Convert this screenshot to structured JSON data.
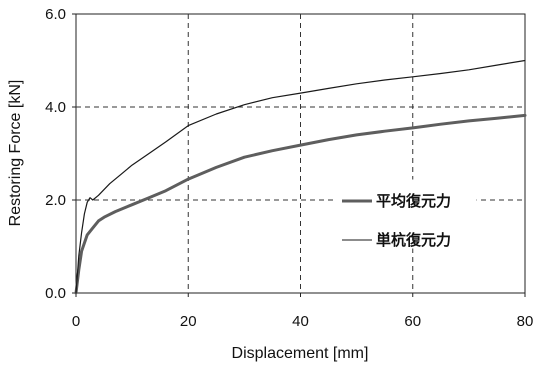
{
  "chart_data": {
    "type": "line",
    "title": "",
    "xlabel": "Displacement [mm]",
    "ylabel": "Restoring Force [kN]",
    "xlim": [
      0,
      80
    ],
    "ylim": [
      0,
      6
    ],
    "x_ticks": [
      0,
      20,
      40,
      60,
      80
    ],
    "x_tick_labels": [
      "0",
      "20",
      "40",
      "60",
      "80"
    ],
    "y_ticks": [
      0,
      2,
      4,
      6
    ],
    "y_tick_labels": [
      "0.0",
      "2.0",
      "4.0",
      "6.0"
    ],
    "grid": "dashed, major ticks",
    "legend_position": "right",
    "series": [
      {
        "name": "平均復元力",
        "color": "#5e5e5e",
        "style": "thick",
        "x": [
          0,
          0.5,
          1,
          2,
          3,
          4,
          5,
          7,
          10,
          13,
          16,
          20,
          25,
          30,
          35,
          40,
          45,
          50,
          55,
          60,
          65,
          70,
          75,
          80
        ],
        "y": [
          0,
          0.5,
          0.9,
          1.25,
          1.4,
          1.55,
          1.63,
          1.75,
          1.9,
          2.05,
          2.2,
          2.45,
          2.7,
          2.92,
          3.06,
          3.18,
          3.3,
          3.4,
          3.48,
          3.55,
          3.63,
          3.7,
          3.76,
          3.82
        ]
      },
      {
        "name": "単杭復元力",
        "color": "#1a1a1a",
        "style": "thin",
        "x": [
          0,
          0.5,
          1,
          1.5,
          2,
          2.5,
          3,
          4,
          6,
          8,
          10,
          13,
          16,
          20,
          25,
          30,
          35,
          40,
          45,
          50,
          55,
          60,
          65,
          70,
          75,
          80
        ],
        "y": [
          0,
          0.8,
          1.3,
          1.7,
          1.95,
          2.05,
          2.0,
          2.1,
          2.35,
          2.55,
          2.75,
          3.0,
          3.25,
          3.6,
          3.85,
          4.05,
          4.2,
          4.3,
          4.4,
          4.5,
          4.58,
          4.65,
          4.72,
          4.8,
          4.9,
          5.0
        ]
      }
    ]
  }
}
